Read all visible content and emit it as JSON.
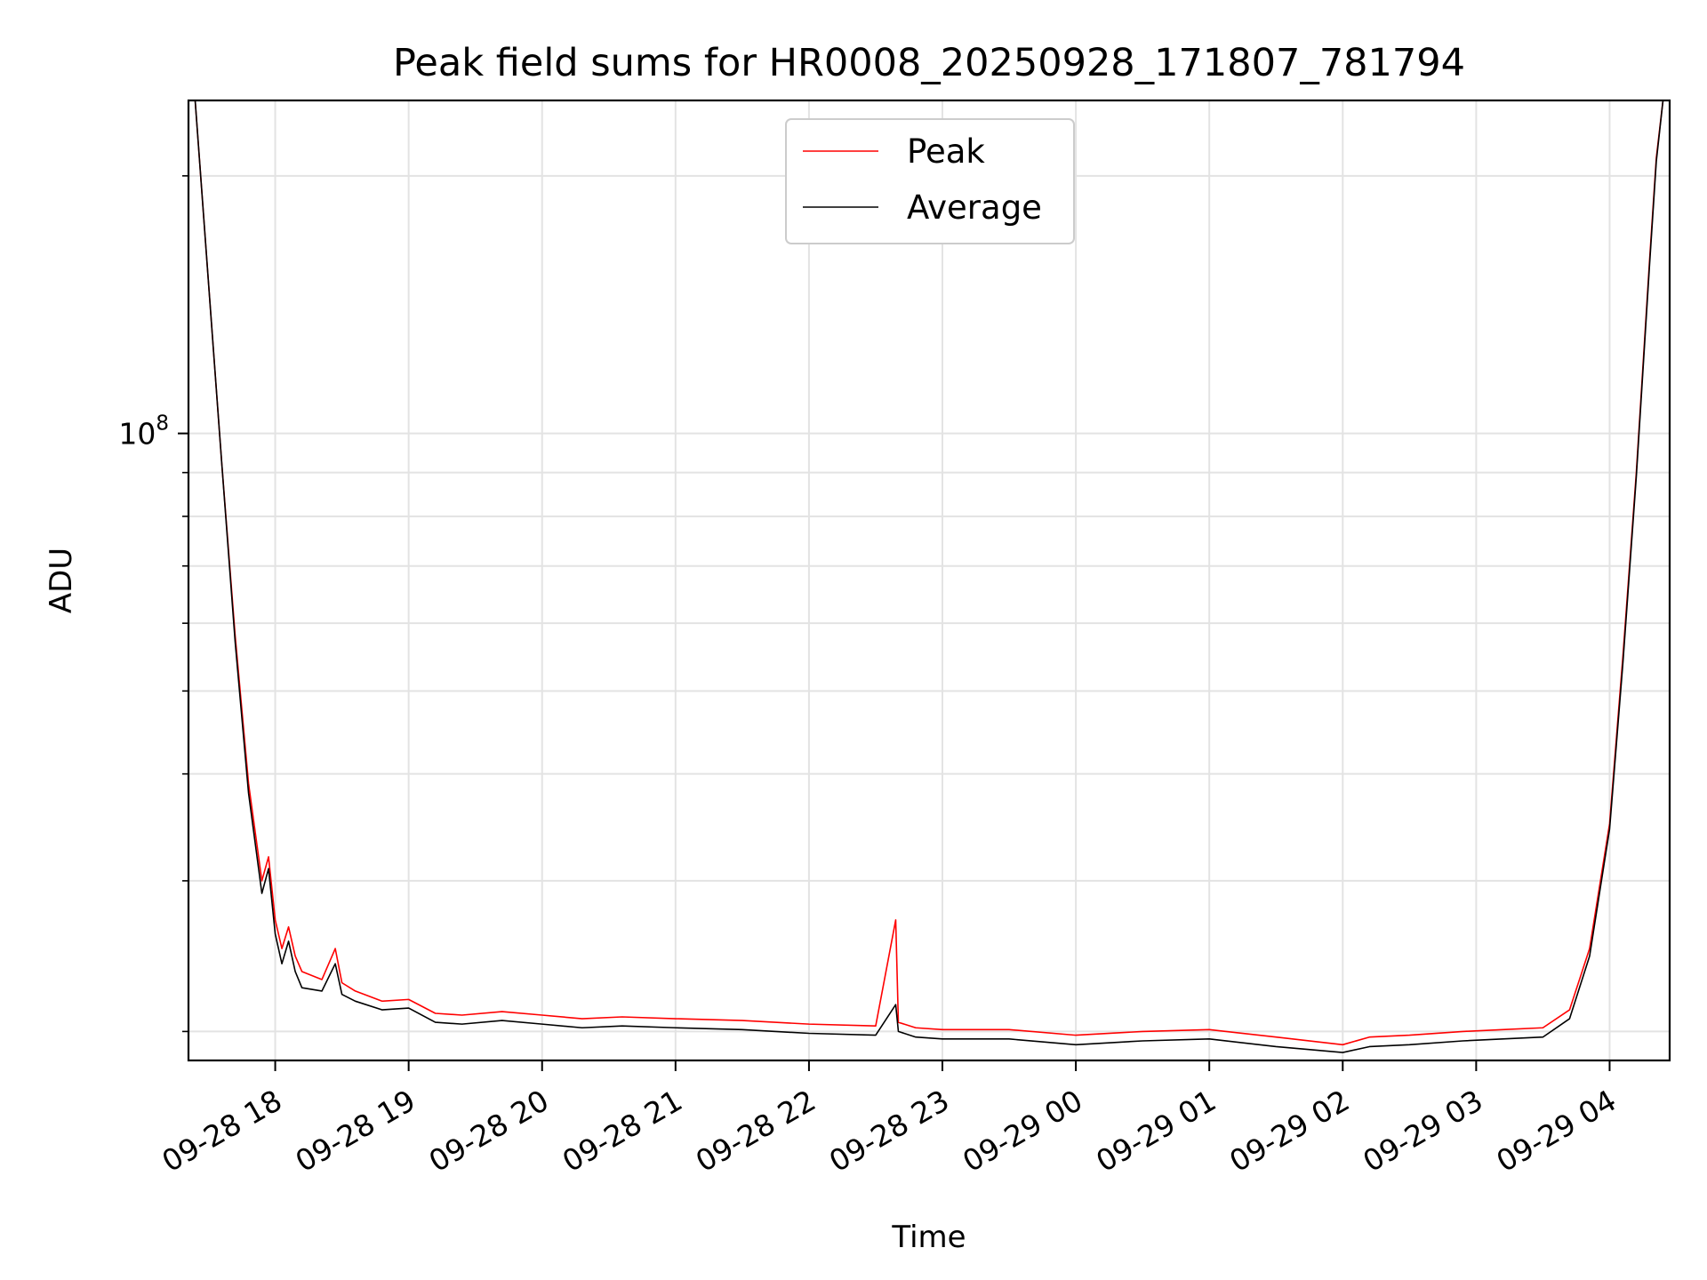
{
  "chart_data": {
    "type": "line",
    "title": "Peak field sums for HR0008_20250928_171807_781794",
    "xlabel": "Time",
    "ylabel": "ADU",
    "yscale": "log",
    "ylim": [
      18500000.0,
      245000000.0
    ],
    "xlim_hours_from_0928_1700": [
      0.35,
      11.45
    ],
    "x_tick_hours": [
      1,
      2,
      3,
      4,
      5,
      6,
      7,
      8,
      9,
      10,
      11
    ],
    "x_tick_labels": [
      "09-28 18",
      "09-28 19",
      "09-28 20",
      "09-28 21",
      "09-28 22",
      "09-28 23",
      "09-29 00",
      "09-29 01",
      "09-29 02",
      "09-29 03",
      "09-29 04"
    ],
    "y_major_ticks": [
      {
        "value": 100000000,
        "label": "10^8"
      }
    ],
    "y_minor_ticks": [
      20000000,
      30000000,
      40000000,
      50000000,
      60000000,
      70000000,
      80000000,
      90000000,
      200000000
    ],
    "grid": true,
    "legend_position": "top-center",
    "series": [
      {
        "name": "Peak",
        "color": "#ff0000",
        "x": [
          0.4,
          0.5,
          0.6,
          0.7,
          0.8,
          0.9,
          0.95,
          1.0,
          1.05,
          1.1,
          1.15,
          1.2,
          1.35,
          1.45,
          1.5,
          1.6,
          1.8,
          2.0,
          2.2,
          2.4,
          2.7,
          3.0,
          3.3,
          3.6,
          4.0,
          4.5,
          5.0,
          5.5,
          5.65,
          5.67,
          5.8,
          6.0,
          6.5,
          7.0,
          7.5,
          8.0,
          8.5,
          9.0,
          9.2,
          9.5,
          9.9,
          10.2,
          10.5,
          10.7,
          10.85,
          11.0,
          11.1,
          11.2,
          11.3,
          11.35,
          11.4
        ],
        "y": [
          245000000,
          150000000,
          92000000,
          58000000,
          39000000,
          30000000,
          32000000,
          27000000,
          25000000,
          26500000,
          24500000,
          23500000,
          23000000,
          25000000,
          22800000,
          22300000,
          21700000,
          21800000,
          21000000,
          20900000,
          21100000,
          20900000,
          20700000,
          20800000,
          20700000,
          20600000,
          20400000,
          20300000,
          27000000,
          20500000,
          20200000,
          20100000,
          20100000,
          19800000,
          20000000,
          20100000,
          19700000,
          19300000,
          19700000,
          19800000,
          20000000,
          20100000,
          20200000,
          21200000,
          25000000,
          35000000,
          55000000,
          90000000,
          160000000,
          210000000,
          245000000
        ]
      },
      {
        "name": "Average",
        "color": "#000000",
        "x": [
          0.4,
          0.5,
          0.6,
          0.7,
          0.8,
          0.9,
          0.95,
          1.0,
          1.05,
          1.1,
          1.15,
          1.2,
          1.35,
          1.45,
          1.5,
          1.6,
          1.8,
          2.0,
          2.2,
          2.4,
          2.7,
          3.0,
          3.3,
          3.6,
          4.0,
          4.5,
          5.0,
          5.5,
          5.65,
          5.67,
          5.8,
          6.0,
          6.5,
          7.0,
          7.5,
          8.0,
          8.5,
          9.0,
          9.2,
          9.5,
          9.9,
          10.2,
          10.5,
          10.7,
          10.85,
          11.0,
          11.1,
          11.2,
          11.3,
          11.35,
          11.4
        ],
        "y": [
          245000000,
          150000000,
          92000000,
          57000000,
          38000000,
          29000000,
          31000000,
          26000000,
          24000000,
          25500000,
          23500000,
          22500000,
          22300000,
          24000000,
          22100000,
          21700000,
          21200000,
          21300000,
          20500000,
          20400000,
          20600000,
          20400000,
          20200000,
          20300000,
          20200000,
          20100000,
          19900000,
          19800000,
          21500000,
          20000000,
          19700000,
          19600000,
          19600000,
          19300000,
          19500000,
          19600000,
          19200000,
          18900000,
          19200000,
          19300000,
          19500000,
          19600000,
          19700000,
          20700000,
          24500000,
          34500000,
          54000000,
          89000000,
          158000000,
          208000000,
          245000000
        ]
      }
    ]
  }
}
